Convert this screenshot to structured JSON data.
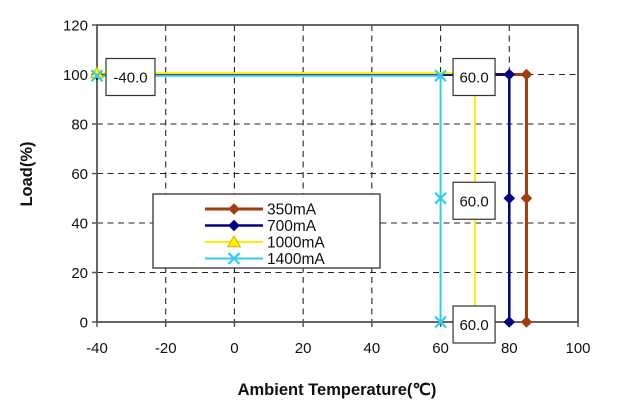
{
  "chart_data": {
    "type": "line",
    "xlabel": "Ambient Temperature(℃)",
    "ylabel": "Load(%)",
    "xlim": [
      -40,
      100
    ],
    "ylim": [
      0,
      120
    ],
    "xticks": [
      -40,
      -20,
      0,
      20,
      40,
      60,
      80,
      100
    ],
    "yticks": [
      0,
      20,
      40,
      60,
      80,
      100,
      120
    ],
    "grid": "dashed-both-axes",
    "legend_position": "inside-center-left",
    "series": [
      {
        "name": "350mA",
        "color": "#A33C0F",
        "marker": "diamond",
        "points": [
          [
            -40,
            100
          ],
          [
            85,
            100
          ],
          [
            85,
            50
          ],
          [
            85,
            0
          ]
        ]
      },
      {
        "name": "700mA",
        "color": "#000080",
        "marker": "diamond",
        "points": [
          [
            -40,
            100
          ],
          [
            80,
            100
          ],
          [
            80,
            50
          ],
          [
            80,
            0
          ]
        ]
      },
      {
        "name": "1000mA",
        "color": "#FFEE00",
        "marker": "triangle",
        "points": [
          [
            -40,
            100
          ],
          [
            70,
            100
          ],
          [
            70,
            50
          ],
          [
            70,
            0
          ]
        ]
      },
      {
        "name": "1400mA",
        "color": "#33CCEE",
        "marker": "x",
        "points": [
          [
            -40,
            100
          ],
          [
            60,
            100
          ],
          [
            60,
            50
          ],
          [
            60,
            0
          ]
        ]
      }
    ],
    "annotations": [
      {
        "text": "-40.0",
        "x": -40,
        "y": 100
      },
      {
        "text": "60.0",
        "x": 60,
        "y": 100
      },
      {
        "text": "60.0",
        "x": 60,
        "y": 50
      },
      {
        "text": "60.0",
        "x": 60,
        "y": 0
      }
    ]
  }
}
